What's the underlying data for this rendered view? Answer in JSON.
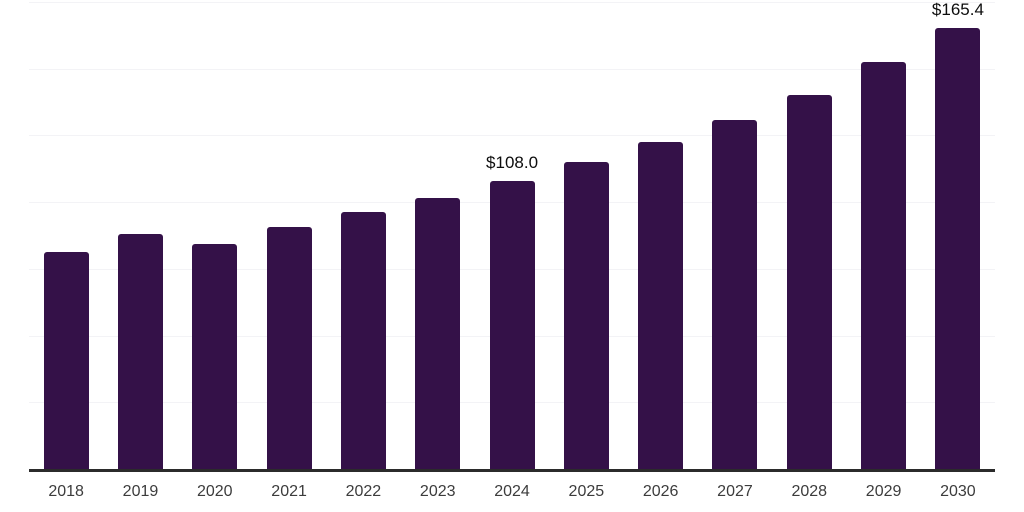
{
  "chart": {
    "background": "#ffffff",
    "bar_color": "#341148",
    "grid_color": "#f3f3f6",
    "axis_color": "#2b2b2b",
    "tick_label_color": "#3c3c3c",
    "value_label_color": "#0d0d0d"
  },
  "chart_data": {
    "type": "bar",
    "title": "",
    "xlabel": "",
    "ylabel": "",
    "categories": [
      "2018",
      "2019",
      "2020",
      "2021",
      "2022",
      "2023",
      "2024",
      "2025",
      "2026",
      "2027",
      "2028",
      "2029",
      "2030"
    ],
    "values": [
      81.4,
      88.1,
      84.4,
      90.8,
      96.4,
      101.5,
      108.0,
      115.2,
      122.7,
      130.8,
      140.0,
      152.4,
      165.4
    ],
    "data_labels": [
      {
        "index": 6,
        "text": "$108.0"
      },
      {
        "index": 12,
        "text": "$165.4"
      }
    ],
    "ylim": [
      0,
      175
    ],
    "ytick_step": 25,
    "grid": "horizontal",
    "yaxis_tick_labels_visible": false,
    "legend_position": "none"
  }
}
